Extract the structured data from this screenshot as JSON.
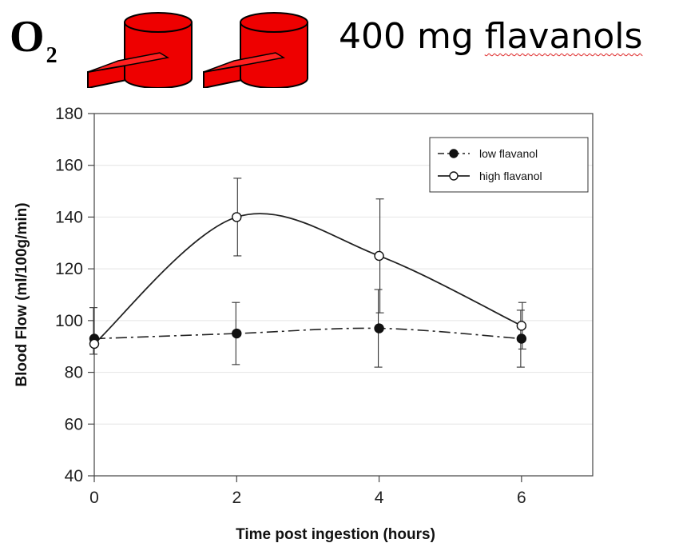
{
  "header": {
    "o2_main": "O",
    "o2_sub": "2",
    "dose_prefix": "400 mg ",
    "dose_word": "flavanols",
    "cup_color": "#ee0000",
    "cup_count": 2,
    "icon": "red-cup-icon"
  },
  "chart_data": {
    "type": "line",
    "xlabel": "Time post ingestion (hours)",
    "ylabel": "Blood Flow (ml/100g/min)",
    "xlim": [
      0,
      7
    ],
    "ylim": [
      40,
      180
    ],
    "xticks": [
      0,
      2,
      4,
      6
    ],
    "yticks": [
      40,
      60,
      80,
      100,
      120,
      140,
      160,
      180
    ],
    "grid": "horizontal",
    "legend_position": "top-right",
    "series": [
      {
        "name": "low flavanol",
        "marker": "filled-circle",
        "line": "dash-dot",
        "x": [
          0,
          2,
          4,
          6
        ],
        "y": [
          93,
          95,
          97,
          93
        ],
        "err": [
          [
            6,
            12
          ],
          [
            12,
            12
          ],
          [
            15,
            15
          ],
          [
            11,
            11
          ]
        ]
      },
      {
        "name": "high flavanol",
        "marker": "open-circle",
        "line": "solid",
        "x": [
          0,
          2,
          4,
          6
        ],
        "y": [
          91,
          140,
          125,
          98
        ],
        "err": [
          [
            0,
            0
          ],
          [
            15,
            15
          ],
          [
            22,
            22
          ],
          [
            9,
            9
          ]
        ]
      }
    ]
  }
}
